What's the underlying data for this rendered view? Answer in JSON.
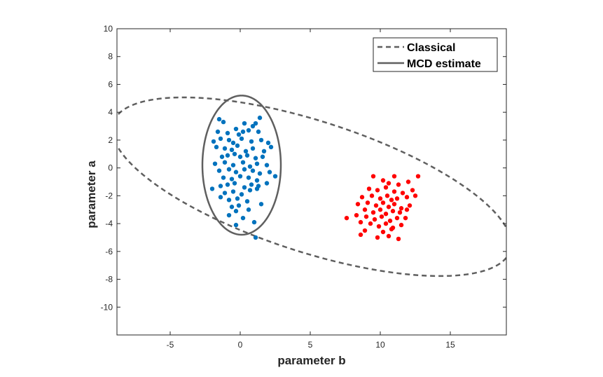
{
  "chart_data": {
    "type": "scatter",
    "title": "",
    "xlabel": "parameter b",
    "ylabel": "parameter a",
    "xlim": [
      -8.8,
      19
    ],
    "ylim": [
      -12,
      10
    ],
    "xticks": [
      -5,
      0,
      5,
      10,
      15
    ],
    "yticks": [
      10,
      8,
      6,
      4,
      2,
      0,
      -2,
      -4,
      -6,
      -8,
      -10
    ],
    "grid": false,
    "legend_position": "top-right",
    "legend": [
      "Classical",
      "MCD estimate"
    ],
    "colors": {
      "cluster1": "#0072BD",
      "cluster2": "#FF0000",
      "ellipse": "#5f5f5f",
      "axes": "#262626"
    },
    "ellipses": [
      {
        "name": "Classical",
        "style": "dashed",
        "center": [
          5.1,
          -1.35
        ],
        "semi_major": 14.9,
        "semi_minor": 4.7,
        "angle_deg": -18
      },
      {
        "name": "MCD estimate",
        "style": "solid",
        "center": [
          0.1,
          0.2
        ],
        "semi_major": 5.0,
        "semi_minor": 2.8,
        "angle_deg": 90
      }
    ],
    "series": [
      {
        "points": [
          [
            -1.5,
            3.5
          ],
          [
            -1.2,
            3.3
          ],
          [
            0.3,
            3.2
          ],
          [
            0.9,
            3.0
          ],
          [
            1.1,
            3.2
          ],
          [
            1.4,
            3.6
          ],
          [
            -1.6,
            2.6
          ],
          [
            -0.9,
            2.5
          ],
          [
            -0.3,
            2.8
          ],
          [
            -0.1,
            2.4
          ],
          [
            0.2,
            2.6
          ],
          [
            0.6,
            2.7
          ],
          [
            1.3,
            2.6
          ],
          [
            -1.9,
            1.9
          ],
          [
            -1.4,
            2.1
          ],
          [
            -0.8,
            2.0
          ],
          [
            -0.5,
            1.8
          ],
          [
            0.1,
            2.1
          ],
          [
            0.8,
            1.9
          ],
          [
            1.5,
            2.0
          ],
          [
            2.0,
            1.8
          ],
          [
            -1.7,
            1.5
          ],
          [
            -1.1,
            1.4
          ],
          [
            -0.6,
            1.3
          ],
          [
            -0.2,
            1.6
          ],
          [
            0.4,
            1.2
          ],
          [
            0.9,
            1.4
          ],
          [
            1.7,
            1.2
          ],
          [
            2.2,
            1.5
          ],
          [
            -1.3,
            0.8
          ],
          [
            -0.9,
            0.9
          ],
          [
            -0.4,
            1.0
          ],
          [
            0.0,
            0.8
          ],
          [
            0.5,
            0.9
          ],
          [
            1.1,
            0.7
          ],
          [
            1.6,
            0.8
          ],
          [
            -1.8,
            0.3
          ],
          [
            -1.1,
            0.4
          ],
          [
            -0.5,
            0.2
          ],
          [
            0.2,
            0.4
          ],
          [
            0.7,
            0.1
          ],
          [
            1.2,
            0.3
          ],
          [
            1.9,
            0.2
          ],
          [
            -1.5,
            -0.2
          ],
          [
            -0.8,
            -0.1
          ],
          [
            -0.3,
            -0.3
          ],
          [
            0.3,
            -0.1
          ],
          [
            0.9,
            -0.2
          ],
          [
            1.4,
            -0.4
          ],
          [
            2.1,
            -0.3
          ],
          [
            -1.2,
            -0.7
          ],
          [
            -0.6,
            -0.8
          ],
          [
            0.0,
            -0.6
          ],
          [
            0.6,
            -0.7
          ],
          [
            1.2,
            -0.9
          ],
          [
            2.5,
            -0.6
          ],
          [
            -2.0,
            -1.5
          ],
          [
            -1.4,
            -1.3
          ],
          [
            -0.9,
            -1.2
          ],
          [
            -0.4,
            -1.1
          ],
          [
            0.3,
            -1.4
          ],
          [
            0.8,
            -1.2
          ],
          [
            1.3,
            -1.3
          ],
          [
            1.9,
            -1.1
          ],
          [
            -1.1,
            -1.8
          ],
          [
            -0.5,
            -1.7
          ],
          [
            0.1,
            -1.9
          ],
          [
            0.7,
            -1.6
          ],
          [
            1.2,
            -1.5
          ],
          [
            -1.4,
            -2.1
          ],
          [
            -0.8,
            -2.3
          ],
          [
            -0.2,
            -2.2
          ],
          [
            0.5,
            -2.4
          ],
          [
            -0.6,
            -2.8
          ],
          [
            -0.1,
            -2.7
          ],
          [
            1.5,
            -2.6
          ],
          [
            -0.3,
            -3.1
          ],
          [
            0.6,
            -3.0
          ],
          [
            -0.8,
            -3.4
          ],
          [
            0.2,
            -3.6
          ],
          [
            -0.3,
            -4.1
          ],
          [
            1.0,
            -3.9
          ],
          [
            1.1,
            -5.0
          ]
        ]
      },
      {
        "points": [
          [
            9.5,
            -0.6
          ],
          [
            11.0,
            -0.6
          ],
          [
            10.2,
            -0.9
          ],
          [
            10.6,
            -1.1
          ],
          [
            11.3,
            -1.2
          ],
          [
            12.0,
            -1.0
          ],
          [
            12.7,
            -0.6
          ],
          [
            9.2,
            -1.5
          ],
          [
            9.8,
            -1.6
          ],
          [
            10.4,
            -1.4
          ],
          [
            11.0,
            -1.7
          ],
          [
            11.6,
            -1.8
          ],
          [
            12.3,
            -1.6
          ],
          [
            8.7,
            -2.1
          ],
          [
            9.4,
            -2.0
          ],
          [
            10.0,
            -2.2
          ],
          [
            10.5,
            -2.0
          ],
          [
            10.8,
            -2.3
          ],
          [
            11.2,
            -2.2
          ],
          [
            11.9,
            -2.1
          ],
          [
            12.5,
            -2.0
          ],
          [
            8.4,
            -2.6
          ],
          [
            9.1,
            -2.5
          ],
          [
            9.7,
            -2.7
          ],
          [
            10.2,
            -2.5
          ],
          [
            10.6,
            -2.8
          ],
          [
            11.0,
            -2.6
          ],
          [
            11.5,
            -2.9
          ],
          [
            12.1,
            -2.7
          ],
          [
            8.9,
            -3.0
          ],
          [
            9.5,
            -3.2
          ],
          [
            10.0,
            -3.0
          ],
          [
            10.4,
            -3.3
          ],
          [
            10.9,
            -3.1
          ],
          [
            11.4,
            -3.2
          ],
          [
            11.9,
            -3.0
          ],
          [
            7.6,
            -3.6
          ],
          [
            8.3,
            -3.4
          ],
          [
            9.0,
            -3.5
          ],
          [
            9.6,
            -3.7
          ],
          [
            10.1,
            -3.5
          ],
          [
            10.7,
            -3.8
          ],
          [
            11.2,
            -3.6
          ],
          [
            11.8,
            -3.6
          ],
          [
            8.6,
            -3.9
          ],
          [
            9.3,
            -4.0
          ],
          [
            9.9,
            -4.2
          ],
          [
            10.4,
            -4.0
          ],
          [
            10.9,
            -4.3
          ],
          [
            11.5,
            -4.1
          ],
          [
            8.9,
            -4.5
          ],
          [
            10.2,
            -4.6
          ],
          [
            10.8,
            -4.4
          ],
          [
            8.6,
            -4.8
          ],
          [
            9.8,
            -5.0
          ],
          [
            10.6,
            -4.9
          ],
          [
            11.3,
            -5.1
          ]
        ]
      }
    ]
  }
}
